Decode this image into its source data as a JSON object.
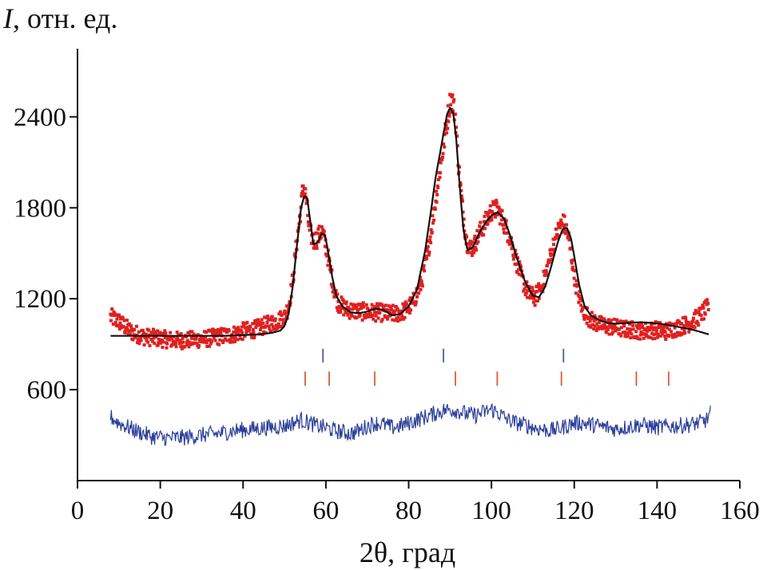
{
  "chart_data": {
    "type": "scatter",
    "title": "",
    "ylabel_italic": "I",
    "ylabel_rest": ", отн. ед.",
    "xlabel": "2θ, град",
    "xlim": [
      0,
      160
    ],
    "ylim": [
      0,
      2850
    ],
    "xticks": [
      0,
      20,
      40,
      60,
      80,
      100,
      120,
      140,
      160
    ],
    "yticks": [
      600,
      1200,
      1800,
      2400
    ],
    "grid": false,
    "legend": "none",
    "colors": {
      "observed": "#e02020",
      "calculated": "#111111",
      "difference": "#2a3f9a",
      "phase1_ticks": "#4a5ba8",
      "phase2_ticks": "#e05a3a"
    },
    "series": [
      {
        "role": "calculated",
        "style": "line",
        "x": [
          8,
          15,
          20,
          25,
          30,
          35,
          40,
          44,
          47,
          49,
          50,
          51,
          52,
          53,
          54,
          54.8,
          55.5,
          56.2,
          57,
          58,
          59,
          59.8,
          60.6,
          61.5,
          62.5,
          64,
          66,
          68,
          70,
          72,
          74,
          76,
          78,
          80,
          82,
          84,
          85.5,
          86.5,
          87.5,
          88.5,
          89.3,
          90,
          90.8,
          91.5,
          92.3,
          93.2,
          94.2,
          95.5,
          97,
          98.5,
          100,
          101.5,
          103,
          104.5,
          106,
          108,
          110,
          111.5,
          113,
          114.5,
          116,
          117.2,
          118.2,
          119.2,
          120.2,
          121.2,
          122.5,
          124,
          126,
          128,
          130,
          133,
          136,
          139,
          142,
          145,
          148,
          150,
          152.5
        ],
        "y": [
          955,
          955,
          955,
          955,
          955,
          955,
          960,
          965,
          975,
          990,
          1020,
          1100,
          1280,
          1550,
          1800,
          1880,
          1860,
          1720,
          1560,
          1570,
          1630,
          1620,
          1500,
          1350,
          1220,
          1150,
          1110,
          1105,
          1115,
          1135,
          1125,
          1090,
          1100,
          1150,
          1260,
          1520,
          1800,
          2000,
          2150,
          2300,
          2420,
          2460,
          2420,
          2250,
          1950,
          1660,
          1520,
          1540,
          1630,
          1700,
          1750,
          1770,
          1730,
          1620,
          1480,
          1320,
          1220,
          1210,
          1280,
          1420,
          1570,
          1660,
          1670,
          1600,
          1450,
          1290,
          1150,
          1090,
          1060,
          1040,
          1035,
          1040,
          1045,
          1040,
          1030,
          1015,
          1000,
          985,
          965
        ]
      },
      {
        "role": "observed",
        "style": "points",
        "x": [
          8,
          10,
          13,
          16,
          19,
          22,
          25,
          28,
          31,
          34,
          37,
          40,
          43,
          46,
          48,
          50,
          51,
          52,
          53,
          54,
          54.5,
          55.2,
          56,
          57,
          58,
          59,
          60,
          61,
          62,
          63,
          65,
          67,
          69,
          71,
          73,
          75,
          77,
          79,
          81,
          83,
          84.5,
          86,
          87,
          88,
          89,
          90,
          90.5,
          91.3,
          92,
          93,
          94,
          95,
          96,
          97,
          98.5,
          100,
          101.5,
          103,
          104.5,
          106,
          107.5,
          109,
          110.5,
          112,
          113.5,
          115,
          116.5,
          117.5,
          118.5,
          119.5,
          120.5,
          122,
          124,
          126,
          128,
          130,
          132,
          134,
          136,
          138,
          140,
          142,
          144,
          146,
          148,
          150,
          151.5,
          152.5
        ],
        "y": [
          1080,
          1050,
          980,
          950,
          940,
          930,
          925,
          930,
          935,
          950,
          960,
          985,
          1000,
          1030,
          1050,
          1080,
          1150,
          1320,
          1580,
          1800,
          1950,
          1870,
          1650,
          1580,
          1600,
          1650,
          1550,
          1400,
          1260,
          1170,
          1130,
          1120,
          1115,
          1110,
          1110,
          1100,
          1100,
          1120,
          1170,
          1300,
          1480,
          1750,
          1950,
          2130,
          2320,
          2500,
          2520,
          2400,
          2100,
          1800,
          1580,
          1530,
          1560,
          1630,
          1700,
          1780,
          1790,
          1700,
          1600,
          1450,
          1320,
          1230,
          1210,
          1270,
          1400,
          1560,
          1680,
          1700,
          1620,
          1450,
          1280,
          1130,
          1060,
          1030,
          1020,
          1010,
          1000,
          995,
          990,
          990,
          995,
          985,
          1000,
          1020,
          1040,
          1080,
          1120,
          1150
        ]
      },
      {
        "role": "difference",
        "style": "noisy-line",
        "x": [
          8,
          10,
          14,
          18,
          22,
          26,
          30,
          34,
          38,
          42,
          46,
          50,
          54,
          56,
          58,
          60,
          62,
          64,
          66,
          68,
          70,
          72,
          74,
          76,
          78,
          80,
          82,
          84,
          86,
          88,
          90,
          92,
          94,
          96,
          98,
          100,
          102,
          104,
          106,
          108,
          110,
          112,
          114,
          116,
          118,
          120,
          122,
          124,
          126,
          128,
          130,
          132,
          134,
          136,
          138,
          140,
          142,
          144,
          146,
          148,
          150,
          152,
          153
        ],
        "y": [
          420,
          380,
          330,
          290,
          280,
          285,
          300,
          310,
          330,
          340,
          350,
          360,
          400,
          380,
          360,
          350,
          330,
          320,
          310,
          330,
          360,
          380,
          370,
          350,
          360,
          380,
          400,
          420,
          440,
          460,
          470,
          460,
          440,
          430,
          450,
          470,
          440,
          400,
          380,
          370,
          350,
          340,
          330,
          340,
          360,
          380,
          380,
          370,
          360,
          350,
          340,
          350,
          360,
          370,
          360,
          350,
          355,
          360,
          365,
          370,
          380,
          400,
          450
        ]
      }
    ],
    "reflections": [
      {
        "role": "phase1",
        "positions": [
          59.3,
          88.4,
          117.4
        ]
      },
      {
        "role": "phase2",
        "positions": [
          55.0,
          60.8,
          71.8,
          91.3,
          101.4,
          116.9,
          135.0,
          142.8
        ]
      }
    ]
  }
}
